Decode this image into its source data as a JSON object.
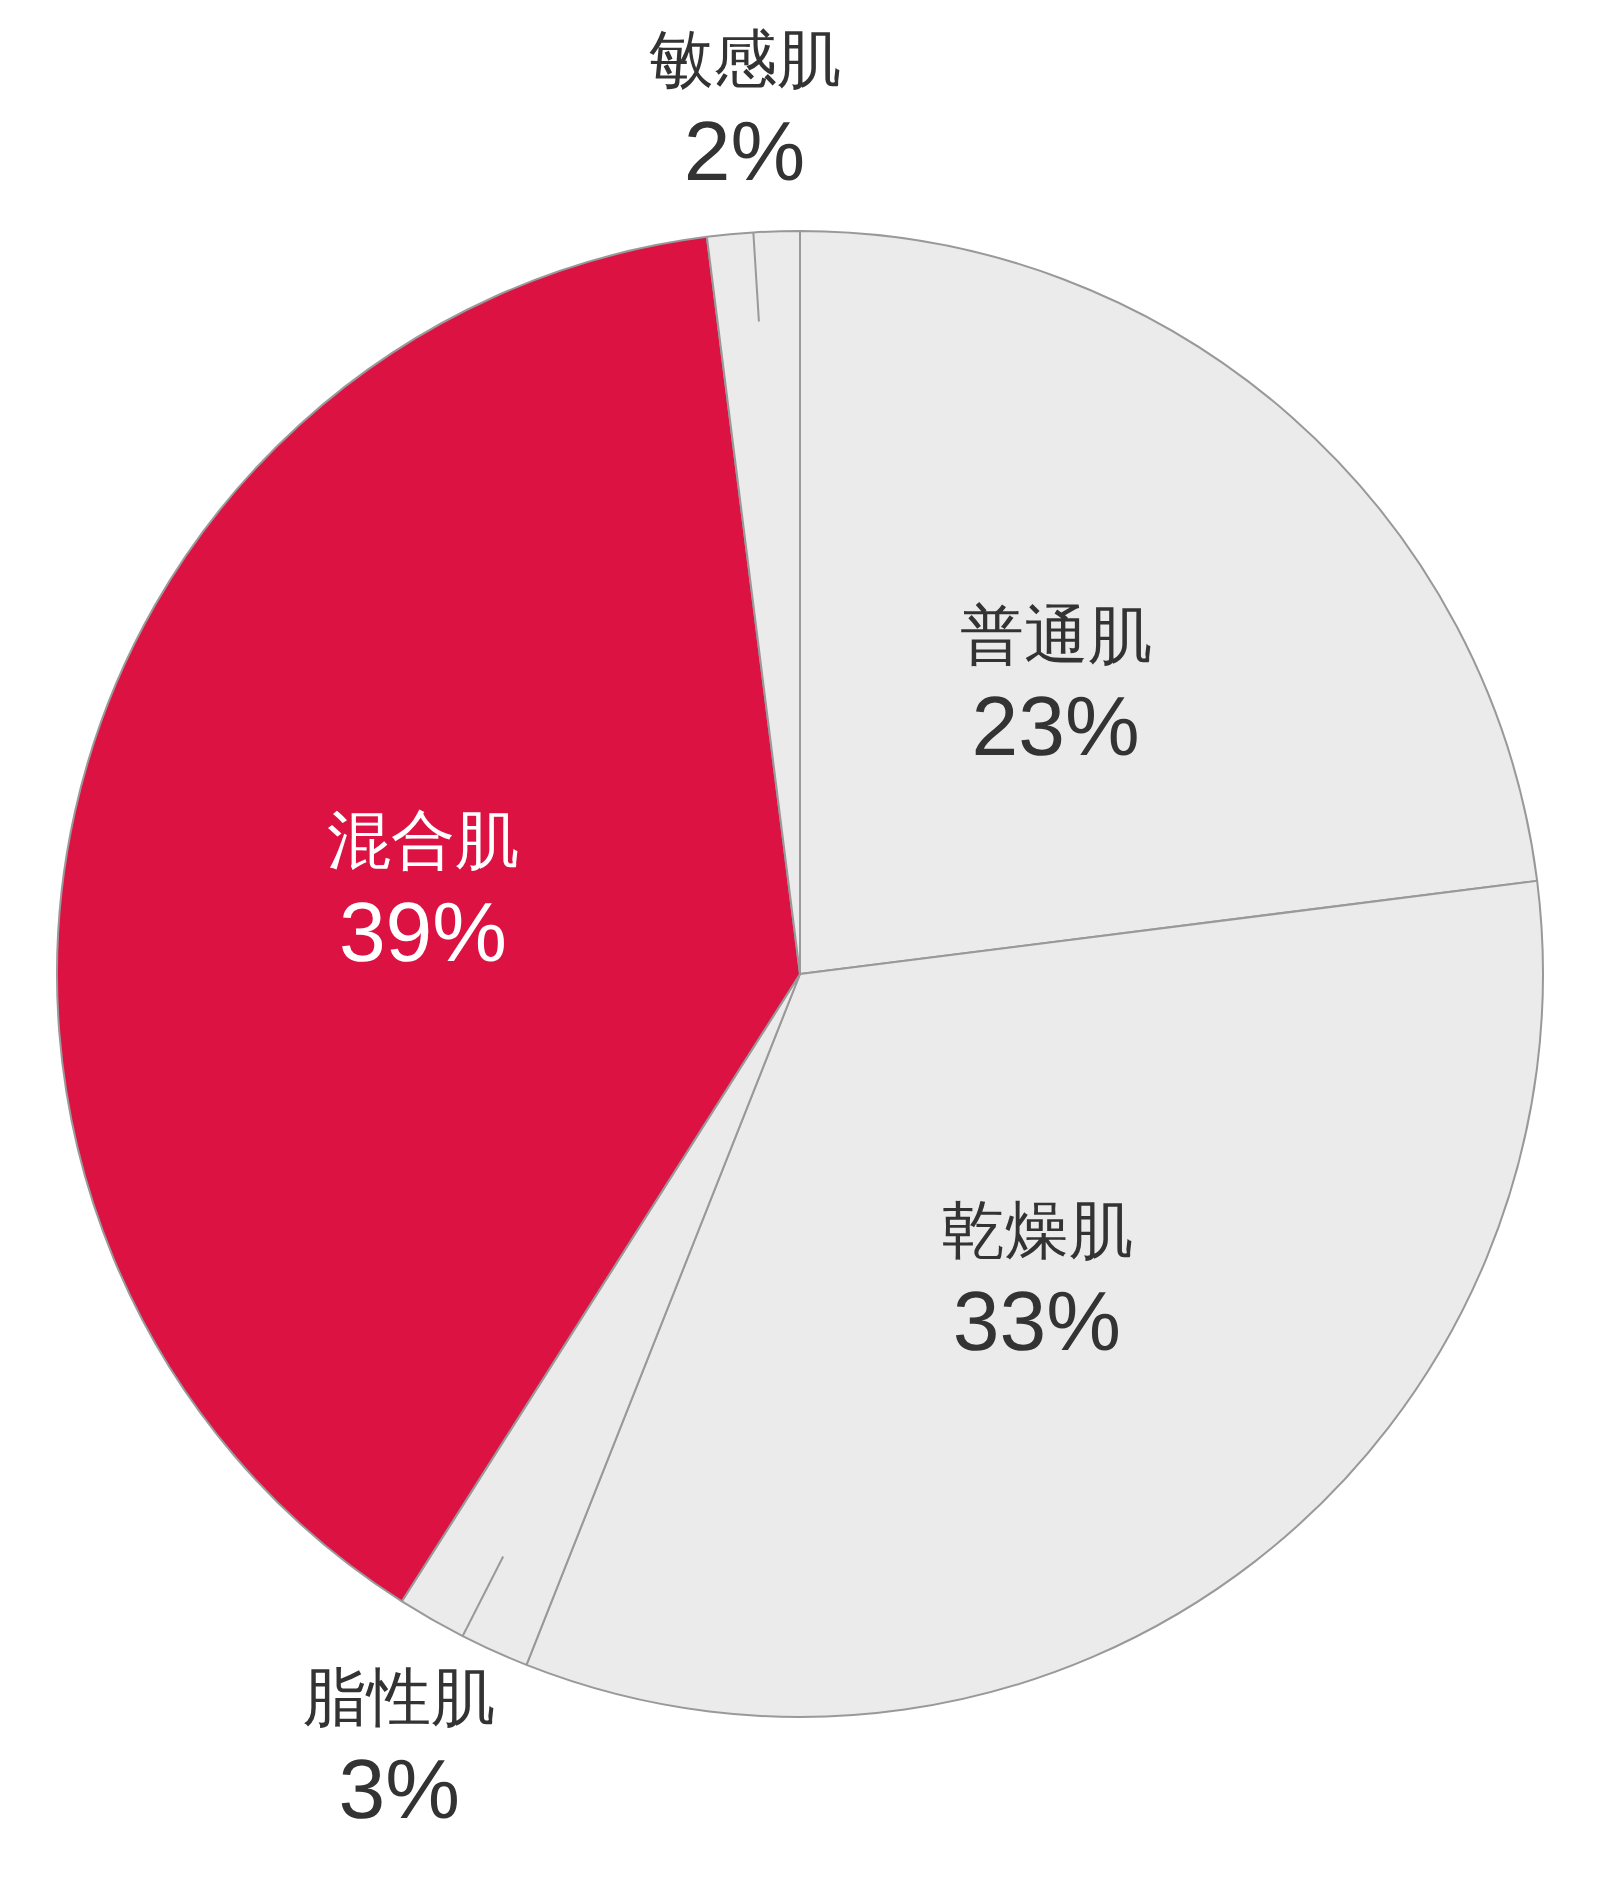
{
  "chart_data": {
    "type": "pie",
    "categories": [
      "普通肌",
      "乾燥肌",
      "脂性肌",
      "混合肌",
      "敏感肌"
    ],
    "values": [
      23,
      33,
      3,
      39,
      2
    ],
    "colors": [
      "#ebebeb",
      "#ebebeb",
      "#ebebeb",
      "#dc1243",
      "#ebebeb"
    ],
    "value_labels": [
      "23%",
      "33%",
      "3%",
      "39%",
      "2%"
    ],
    "legend": false
  }
}
